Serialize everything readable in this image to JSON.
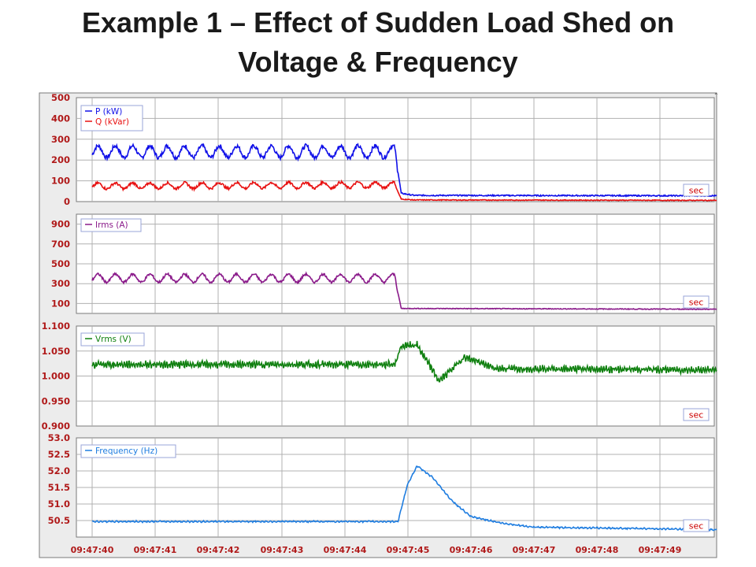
{
  "title": {
    "line1": "Example 1 – Effect of Sudden Load Shed on",
    "line2": "Voltage & Frequency"
  },
  "x_ticks": [
    "09:47:40",
    "09:47:41",
    "09:47:42",
    "09:47:43",
    "09:47:44",
    "09:47:45",
    "09:47:46",
    "09:47:47",
    "09:47:48",
    "09:47:49"
  ],
  "unit_badge": "sec",
  "colors": {
    "frame": "#7a7a7a",
    "grid": "#b0b0b0",
    "tick_label": "#b01a1a",
    "badge_text": "#cc0000",
    "p": "#1010e8",
    "q": "#e81010",
    "irms": "#8a1a8a",
    "vrms": "#108010",
    "freq": "#1f7de0"
  },
  "chart_data": [
    {
      "type": "line",
      "panel": "power",
      "ylim": [
        0,
        500
      ],
      "yticks": [
        "500",
        "400",
        "300",
        "200",
        "100",
        "0"
      ],
      "x": [
        "09:47:40",
        "09:47:44.8",
        "09:47:44.9",
        "09:47:45.1",
        "09:47:49.9"
      ],
      "series": [
        {
          "name": "P (kW)",
          "values": [
            240,
            240,
            40,
            30,
            28
          ]
        },
        {
          "name": "Q (kVar)",
          "values": [
            75,
            80,
            12,
            8,
            6
          ]
        }
      ]
    },
    {
      "type": "line",
      "panel": "current",
      "ylim": [
        0,
        1000
      ],
      "yticks": [
        "900",
        "700",
        "500",
        "300",
        "100"
      ],
      "x": [
        "09:47:40",
        "09:47:44.8",
        "09:47:44.9",
        "09:47:49.9"
      ],
      "series": [
        {
          "name": "Irms (A)",
          "values": [
            355,
            355,
            50,
            42
          ]
        }
      ]
    },
    {
      "type": "line",
      "panel": "voltage",
      "ylim": [
        0.9,
        1.1
      ],
      "yticks": [
        "1.100",
        "1.050",
        "1.000",
        "0.950",
        "0.900"
      ],
      "x": [
        "09:47:40",
        "09:47:44.8",
        "09:47:44.9",
        "09:47:45.15",
        "09:47:45.5",
        "09:47:45.9",
        "09:47:46.4",
        "09:47:49.9"
      ],
      "series": [
        {
          "name": "Vrms (V)",
          "values": [
            1.023,
            1.023,
            1.06,
            1.062,
            0.99,
            1.038,
            1.015,
            1.012
          ]
        }
      ]
    },
    {
      "type": "line",
      "panel": "frequency",
      "ylim": [
        50.0,
        53.0
      ],
      "yticks": [
        "53.0",
        "52.5",
        "52.0",
        "51.5",
        "51.0",
        "50.5"
      ],
      "x": [
        "09:47:40",
        "09:47:44.85",
        "09:47:45.0",
        "09:47:45.15",
        "09:47:45.4",
        "09:47:45.7",
        "09:47:46.0",
        "09:47:46.5",
        "09:47:47.0",
        "09:47:49.0",
        "09:47:49.9"
      ],
      "series": [
        {
          "name": "Frequency (Hz)",
          "values": [
            50.47,
            50.47,
            51.6,
            52.15,
            51.8,
            51.1,
            50.62,
            50.42,
            50.3,
            50.25,
            50.22
          ]
        }
      ]
    }
  ]
}
